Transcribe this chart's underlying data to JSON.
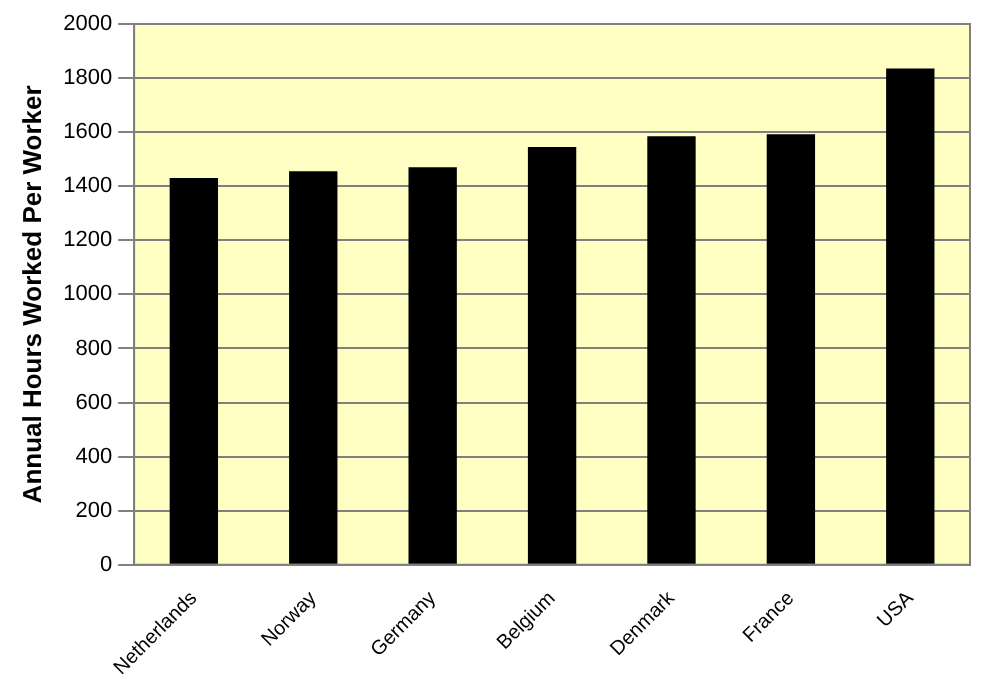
{
  "chart_data": {
    "type": "bar",
    "ylabel": "Annual Hours Worked Per Worker",
    "categories": [
      "Netherlands",
      "Norway",
      "Germany",
      "Belgium",
      "Denmark",
      "France",
      "USA"
    ],
    "values": [
      1430,
      1455,
      1470,
      1545,
      1585,
      1592,
      1835
    ],
    "color": "#000000",
    "ylim": [
      0,
      2000
    ],
    "yticks": [
      0,
      200,
      400,
      600,
      800,
      1000,
      1200,
      1400,
      1600,
      1800,
      2000
    ],
    "grid": "y",
    "legend": false
  }
}
